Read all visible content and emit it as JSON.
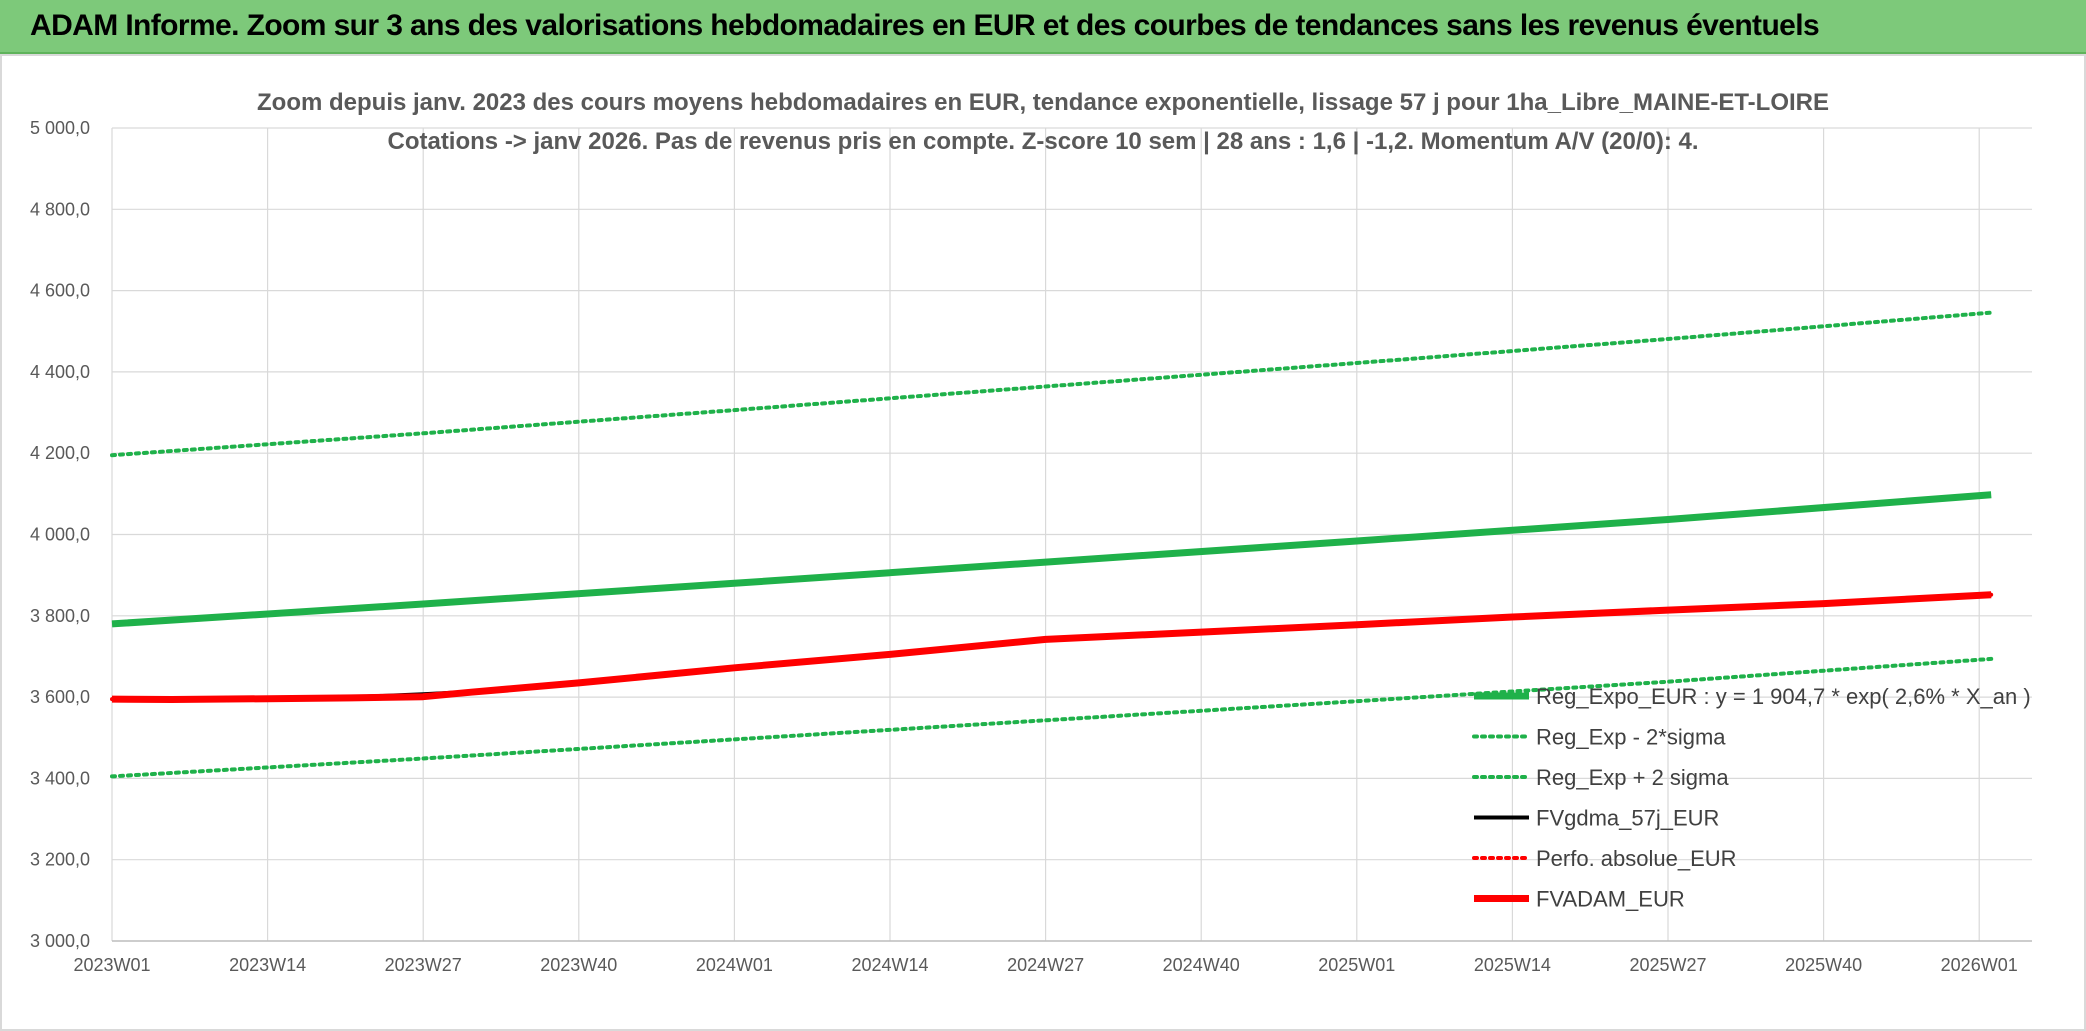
{
  "banner": {
    "title": "ADAM Informe. Zoom sur 3 ans des valorisations hebdomadaires en EUR et des courbes de tendances sans les revenus éventuels"
  },
  "chart_data": {
    "type": "line",
    "title_line1": "Zoom depuis janv. 2023 des cours moyens hebdomadaires en EUR, tendance exponentielle, lissage 57 j pour 1ha_Libre_MAINE-ET-LOIRE",
    "title_line2": "Cotations -> janv 2026. Pas de revenus pris en compte. Z-score 10 sem | 28 ans : 1,6 | -1,2. Momentum A/V (20/0): 4.",
    "x_tick_labels": [
      "2023W01",
      "2023W14",
      "2023W27",
      "2023W40",
      "2024W01",
      "2024W14",
      "2024W27",
      "2024W40",
      "2025W01",
      "2025W14",
      "2025W27",
      "2025W40",
      "2026W01"
    ],
    "x_range": [
      0,
      160
    ],
    "ylim": [
      3000,
      5000
    ],
    "y_ticks": [
      3000,
      3200,
      3400,
      3600,
      3800,
      4000,
      4200,
      4400,
      4600,
      4800,
      5000
    ],
    "y_tick_labels": [
      "3 000,0",
      "3 200,0",
      "3 400,0",
      "3 600,0",
      "3 800,0",
      "4 000,0",
      "4 200,0",
      "4 400,0",
      "4 600,0",
      "4 800,0",
      "5 000,0"
    ],
    "grid": true,
    "legend_position": "right",
    "series": [
      {
        "name": "Reg_Expo_EUR : y = 1 904,7 * exp( 2,6% *  X_an )",
        "color": "#1fb14a",
        "style": "solid-thick",
        "points": [
          [
            0,
            3780
          ],
          [
            26,
            3829
          ],
          [
            52,
            3880
          ],
          [
            78,
            3932
          ],
          [
            104,
            3984
          ],
          [
            130,
            4037
          ],
          [
            157,
            4098
          ]
        ]
      },
      {
        "name": "Reg_Exp - 2*sigma",
        "color": "#1fb14a",
        "style": "dotted",
        "points": [
          [
            0,
            3405
          ],
          [
            26,
            3449
          ],
          [
            52,
            3496
          ],
          [
            78,
            3543
          ],
          [
            104,
            3590
          ],
          [
            130,
            3638
          ],
          [
            157,
            3694
          ]
        ]
      },
      {
        "name": "Reg_Exp + 2 sigma",
        "color": "#1fb14a",
        "style": "dotted",
        "points": [
          [
            0,
            4195
          ],
          [
            26,
            4249
          ],
          [
            52,
            4306
          ],
          [
            78,
            4364
          ],
          [
            104,
            4422
          ],
          [
            130,
            4481
          ],
          [
            157,
            4546
          ]
        ]
      },
      {
        "name": "FVgdma_57j_EUR",
        "color": "#000000",
        "style": "solid",
        "points": [
          [
            0,
            3595
          ],
          [
            5,
            3594
          ],
          [
            13,
            3596
          ],
          [
            20,
            3600
          ],
          [
            26,
            3607
          ],
          [
            30,
            3613
          ],
          [
            39,
            3635
          ],
          [
            52,
            3672
          ],
          [
            65,
            3705
          ],
          [
            78,
            3742
          ],
          [
            91,
            3760
          ],
          [
            104,
            3778
          ],
          [
            117,
            3797
          ],
          [
            130,
            3814
          ],
          [
            143,
            3830
          ],
          [
            157,
            3852
          ]
        ]
      },
      {
        "name": "Perfo. absolue_EUR",
        "color": "#ff0000",
        "style": "dotted",
        "points": [
          [
            0,
            3595
          ],
          [
            5,
            3594
          ],
          [
            13,
            3596
          ],
          [
            20,
            3598
          ],
          [
            26,
            3601
          ],
          [
            30,
            3612
          ],
          [
            39,
            3635
          ],
          [
            52,
            3672
          ],
          [
            65,
            3705
          ],
          [
            78,
            3742
          ],
          [
            91,
            3760
          ],
          [
            104,
            3778
          ],
          [
            117,
            3797
          ],
          [
            130,
            3814
          ],
          [
            143,
            3830
          ],
          [
            157,
            3852
          ]
        ]
      },
      {
        "name": "FVADAM_EUR",
        "color": "#ff0000",
        "style": "solid-thick",
        "points": [
          [
            0,
            3595
          ],
          [
            5,
            3594
          ],
          [
            13,
            3596
          ],
          [
            20,
            3598
          ],
          [
            26,
            3601
          ],
          [
            30,
            3612
          ],
          [
            39,
            3635
          ],
          [
            52,
            3672
          ],
          [
            65,
            3705
          ],
          [
            78,
            3742
          ],
          [
            91,
            3760
          ],
          [
            104,
            3778
          ],
          [
            117,
            3797
          ],
          [
            130,
            3814
          ],
          [
            143,
            3830
          ],
          [
            157,
            3852
          ]
        ]
      }
    ]
  }
}
